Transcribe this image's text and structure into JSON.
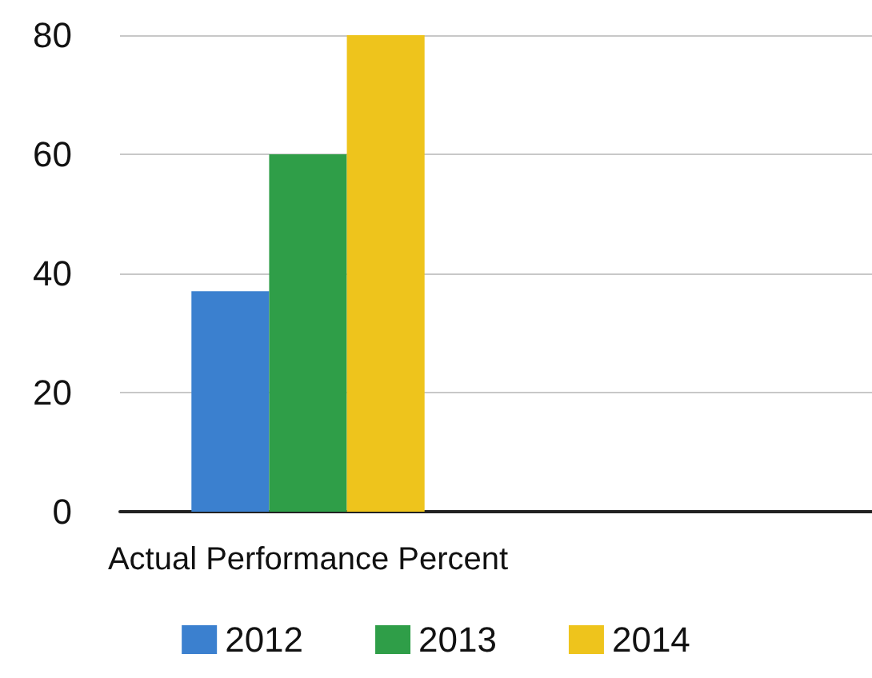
{
  "chart_data": {
    "type": "bar",
    "categories": [
      "Actual Performance Percent",
      null
    ],
    "series": [
      {
        "name": "2012",
        "color": "#3b80cf",
        "values": [
          37,
          null
        ]
      },
      {
        "name": "2013",
        "color": "#2f9e48",
        "values": [
          60,
          null
        ]
      },
      {
        "name": "2014",
        "color": "#eec41c",
        "values": [
          80,
          null
        ]
      }
    ],
    "ylim": [
      0,
      80
    ],
    "yticks": [
      0,
      20,
      40,
      60,
      80
    ],
    "grid": "y",
    "legend": "bottom"
  }
}
